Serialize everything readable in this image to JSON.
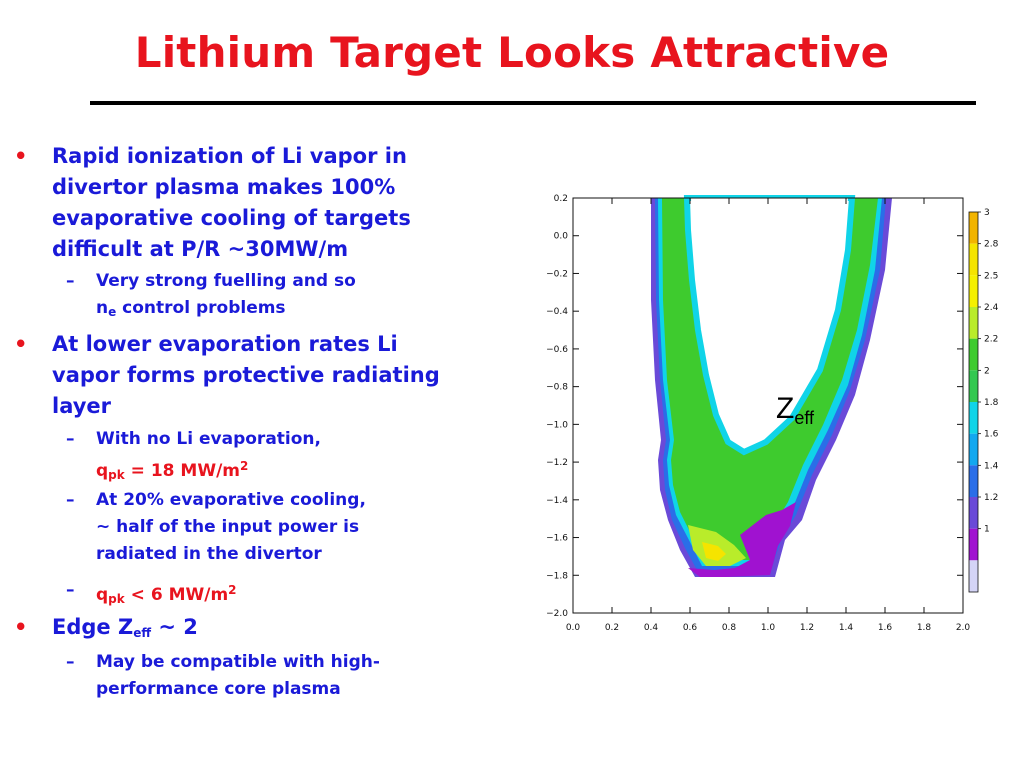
{
  "title": "Lithium Target Looks Attractive",
  "bullets": {
    "b1": [
      "Rapid ionization of Li vapor in",
      "divertor plasma makes 100%",
      "evaporative cooling of targets",
      "difficult at P/R ~30MW/m"
    ],
    "b1_sub1": [
      "Very strong fuelling and so"
    ],
    "b1_sub1_ne_base": "n",
    "b1_sub1_ne_sub": "e",
    "b1_sub1_ne_rest": " control problems",
    "b2": [
      "At lower evaporation rates Li",
      "vapor forms protective radiating",
      "layer"
    ],
    "b2_sub1_line1": "With no Li evaporation,",
    "b2_sub1_q": "q",
    "b2_sub1_q_sub": "pk",
    "b2_sub1_q_rest": " = 18 MW/m",
    "b2_sub1_q_sup": "2",
    "b2_sub2": [
      "At 20% evaporative cooling,",
      "~ half of the input power is",
      "radiated in the divertor"
    ],
    "b2_sub3_q": "q",
    "b2_sub3_q_sub": "pk",
    "b2_sub3_q_rest": " < 6 MW/m",
    "b2_sub3_q_sup": "2",
    "b3_base": "Edge Z",
    "b3_sub": "eff",
    "b3_rest": " ~ 2",
    "b3_sub1": [
      "May be compatible with high-",
      "performance core plasma"
    ]
  },
  "plot": {
    "annotation_base": "Z",
    "annotation_sub": "eff",
    "x_ticks": [
      "0.0",
      "0.2",
      "0.4",
      "0.6",
      "0.8",
      "1.0",
      "1.2",
      "1.4",
      "1.6",
      "1.8",
      "2.0"
    ],
    "y_ticks": [
      "0.2",
      "0.0",
      "−0.2",
      "−0.4",
      "−0.6",
      "−0.8",
      "−1.0",
      "−1.2",
      "−1.4",
      "−1.6",
      "−1.8",
      "−2.0"
    ],
    "colorbar_labels": [
      "3",
      "2.8",
      "2.5",
      "2.4",
      "2.2",
      "2",
      "1.8",
      "1.6",
      "1.4",
      "1.2",
      "1"
    ],
    "colorbar_colors": [
      "#f2b400",
      "#f5e400",
      "#f5f000",
      "#b9ec2a",
      "#3ecb2e",
      "#33c850",
      "#10d4e8",
      "#12a8f0",
      "#2a6ee8",
      "#6a4ad8",
      "#a012d0",
      "#d4d4f6"
    ],
    "region_colors": {
      "outer": "#6a4ad8",
      "edge": "#2a6ee8",
      "cyan": "#10d4e8",
      "green": "#3ecb2e",
      "yellow_green": "#b9ec2a",
      "yellow": "#f5e400",
      "purple": "#a012d0"
    }
  }
}
